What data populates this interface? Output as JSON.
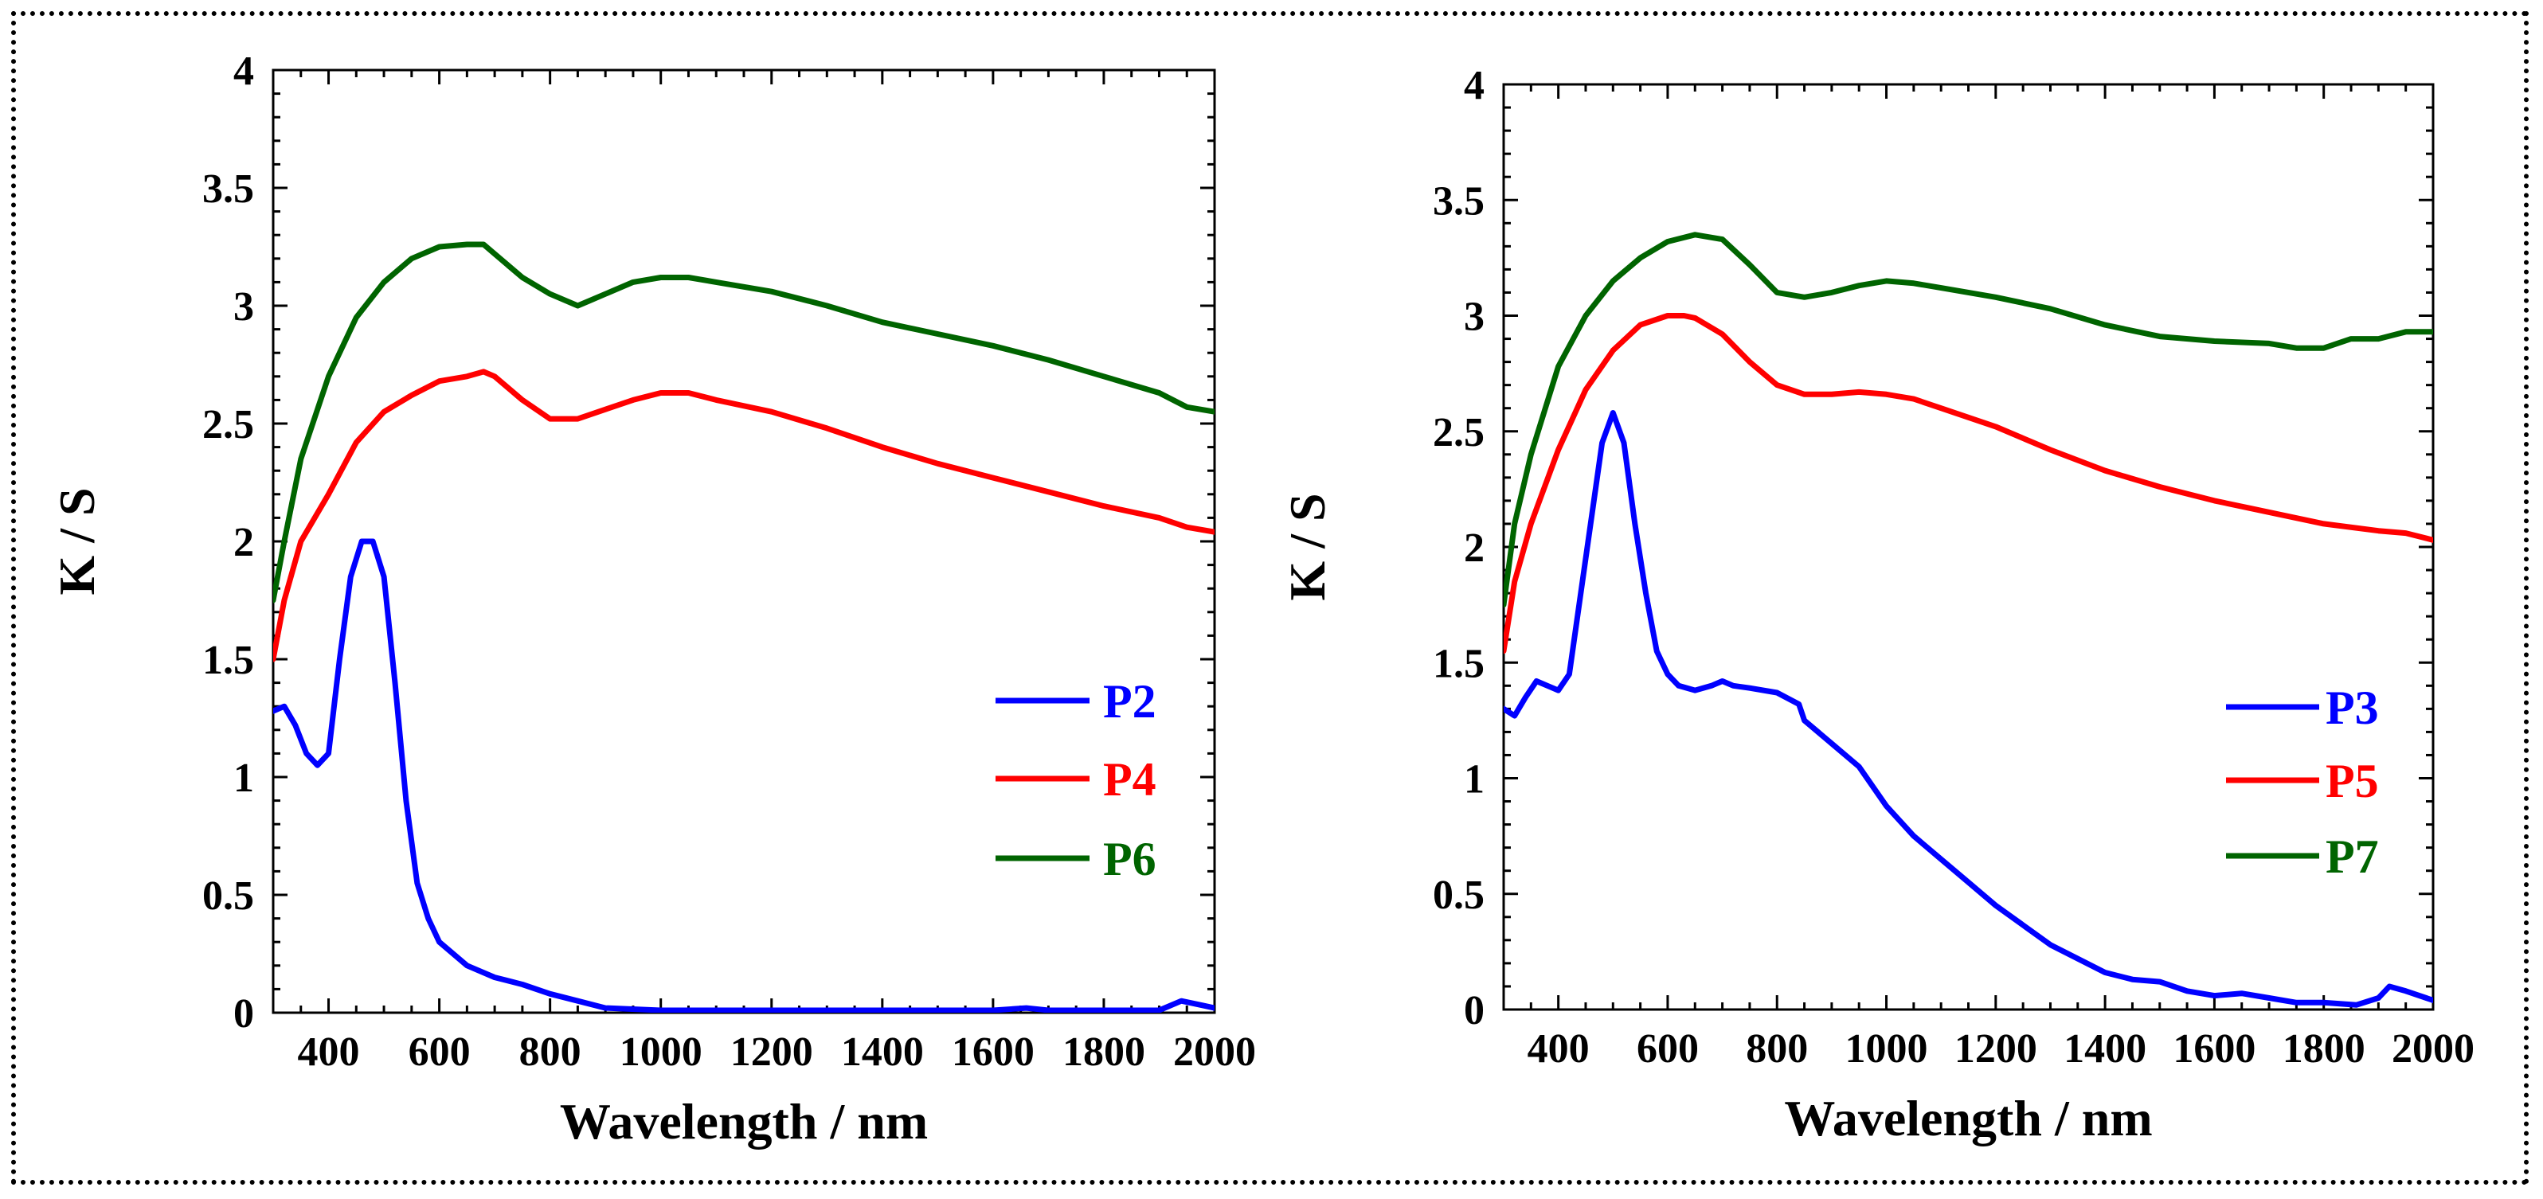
{
  "chart_data": [
    {
      "type": "line",
      "xlabel": "Wavelength / nm",
      "ylabel": "K / S",
      "xlim": [
        300,
        2000
      ],
      "ylim": [
        0,
        4
      ],
      "xticks": [
        400,
        600,
        800,
        1000,
        1200,
        1400,
        1600,
        1800,
        2000
      ],
      "xtick_labels": [
        "400",
        "600",
        "800",
        "1000",
        "1200",
        "1400",
        "1600",
        "1800",
        "2000"
      ],
      "yticks": [
        0,
        0.5,
        1,
        1.5,
        2,
        2.5,
        3,
        3.5,
        4
      ],
      "ytick_labels": [
        "0",
        "0.5",
        "1",
        "1.5",
        "2",
        "2.5",
        "3",
        "3.5",
        "4"
      ],
      "legend_position": "center-right",
      "series": [
        {
          "name": "P2",
          "color": "#0000ff",
          "x": [
            300,
            320,
            340,
            360,
            380,
            400,
            420,
            440,
            460,
            480,
            500,
            520,
            540,
            560,
            580,
            600,
            650,
            700,
            750,
            800,
            850,
            900,
            1000,
            1200,
            1400,
            1600,
            1660,
            1700,
            1800,
            1900,
            1940,
            1980,
            2000
          ],
          "y": [
            1.28,
            1.3,
            1.22,
            1.1,
            1.05,
            1.1,
            1.5,
            1.85,
            2.0,
            2.0,
            1.85,
            1.4,
            0.9,
            0.55,
            0.4,
            0.3,
            0.2,
            0.15,
            0.12,
            0.08,
            0.05,
            0.02,
            0.01,
            0.01,
            0.01,
            0.01,
            0.02,
            0.01,
            0.01,
            0.01,
            0.05,
            0.03,
            0.02
          ]
        },
        {
          "name": "P4",
          "color": "#ff0000",
          "x": [
            300,
            320,
            350,
            400,
            450,
            500,
            550,
            600,
            650,
            680,
            700,
            750,
            800,
            850,
            900,
            950,
            1000,
            1050,
            1100,
            1200,
            1300,
            1400,
            1500,
            1600,
            1700,
            1800,
            1900,
            1950,
            2000
          ],
          "y": [
            1.5,
            1.75,
            2.0,
            2.2,
            2.42,
            2.55,
            2.62,
            2.68,
            2.7,
            2.72,
            2.7,
            2.6,
            2.52,
            2.52,
            2.56,
            2.6,
            2.63,
            2.63,
            2.6,
            2.55,
            2.48,
            2.4,
            2.33,
            2.27,
            2.21,
            2.15,
            2.1,
            2.06,
            2.04
          ]
        },
        {
          "name": "P6",
          "color": "#006400",
          "x": [
            300,
            320,
            350,
            400,
            450,
            500,
            550,
            600,
            650,
            680,
            700,
            750,
            800,
            850,
            870,
            900,
            950,
            1000,
            1050,
            1100,
            1200,
            1300,
            1400,
            1500,
            1600,
            1700,
            1800,
            1900,
            1950,
            2000
          ],
          "y": [
            1.75,
            2.0,
            2.35,
            2.7,
            2.95,
            3.1,
            3.2,
            3.25,
            3.26,
            3.26,
            3.22,
            3.12,
            3.05,
            3.0,
            3.02,
            3.05,
            3.1,
            3.12,
            3.12,
            3.1,
            3.06,
            3.0,
            2.93,
            2.88,
            2.83,
            2.77,
            2.7,
            2.63,
            2.57,
            2.55
          ]
        }
      ]
    },
    {
      "type": "line",
      "xlabel": "Wavelength / nm",
      "ylabel": "K / S",
      "xlim": [
        300,
        2000
      ],
      "ylim": [
        0,
        4
      ],
      "xticks": [
        400,
        600,
        800,
        1000,
        1200,
        1400,
        1600,
        1800,
        2000
      ],
      "xtick_labels": [
        "400",
        "600",
        "800",
        "1000",
        "1200",
        "1400",
        "1600",
        "1800",
        "2000"
      ],
      "yticks": [
        0,
        0.5,
        1,
        1.5,
        2,
        2.5,
        3,
        3.5,
        4
      ],
      "ytick_labels": [
        "0",
        "0.5",
        "1",
        "1.5",
        "2",
        "2.5",
        "3",
        "3.5",
        "4"
      ],
      "legend_position": "center-right",
      "series": [
        {
          "name": "P3",
          "color": "#0000ff",
          "x": [
            300,
            320,
            340,
            360,
            380,
            400,
            420,
            450,
            480,
            500,
            520,
            540,
            560,
            580,
            600,
            620,
            650,
            680,
            700,
            720,
            750,
            800,
            840,
            850,
            900,
            950,
            1000,
            1050,
            1100,
            1150,
            1200,
            1300,
            1400,
            1450,
            1500,
            1550,
            1600,
            1650,
            1700,
            1750,
            1800,
            1860,
            1900,
            1920,
            1950,
            2000
          ],
          "y": [
            1.3,
            1.27,
            1.35,
            1.42,
            1.4,
            1.38,
            1.45,
            1.95,
            2.45,
            2.58,
            2.45,
            2.1,
            1.8,
            1.55,
            1.45,
            1.4,
            1.38,
            1.4,
            1.42,
            1.4,
            1.39,
            1.37,
            1.32,
            1.25,
            1.15,
            1.05,
            0.88,
            0.75,
            0.65,
            0.55,
            0.45,
            0.28,
            0.16,
            0.13,
            0.12,
            0.08,
            0.06,
            0.07,
            0.05,
            0.03,
            0.03,
            0.02,
            0.05,
            0.1,
            0.08,
            0.04
          ]
        },
        {
          "name": "P5",
          "color": "#ff0000",
          "x": [
            300,
            320,
            350,
            400,
            450,
            500,
            550,
            600,
            630,
            650,
            700,
            750,
            800,
            850,
            900,
            950,
            1000,
            1050,
            1100,
            1200,
            1300,
            1400,
            1500,
            1600,
            1700,
            1800,
            1900,
            1950,
            2000
          ],
          "y": [
            1.55,
            1.85,
            2.1,
            2.42,
            2.68,
            2.85,
            2.96,
            3.0,
            3.0,
            2.99,
            2.92,
            2.8,
            2.7,
            2.66,
            2.66,
            2.67,
            2.66,
            2.64,
            2.6,
            2.52,
            2.42,
            2.33,
            2.26,
            2.2,
            2.15,
            2.1,
            2.07,
            2.06,
            2.03
          ]
        },
        {
          "name": "P7",
          "color": "#006400",
          "x": [
            300,
            320,
            350,
            400,
            450,
            500,
            550,
            600,
            650,
            700,
            750,
            800,
            850,
            900,
            950,
            1000,
            1050,
            1100,
            1200,
            1300,
            1400,
            1500,
            1600,
            1700,
            1750,
            1800,
            1850,
            1900,
            1950,
            2000
          ],
          "y": [
            1.75,
            2.1,
            2.4,
            2.78,
            3.0,
            3.15,
            3.25,
            3.32,
            3.35,
            3.33,
            3.22,
            3.1,
            3.08,
            3.1,
            3.13,
            3.15,
            3.14,
            3.12,
            3.08,
            3.03,
            2.96,
            2.91,
            2.89,
            2.88,
            2.86,
            2.86,
            2.9,
            2.9,
            2.93,
            2.93
          ]
        }
      ]
    }
  ]
}
